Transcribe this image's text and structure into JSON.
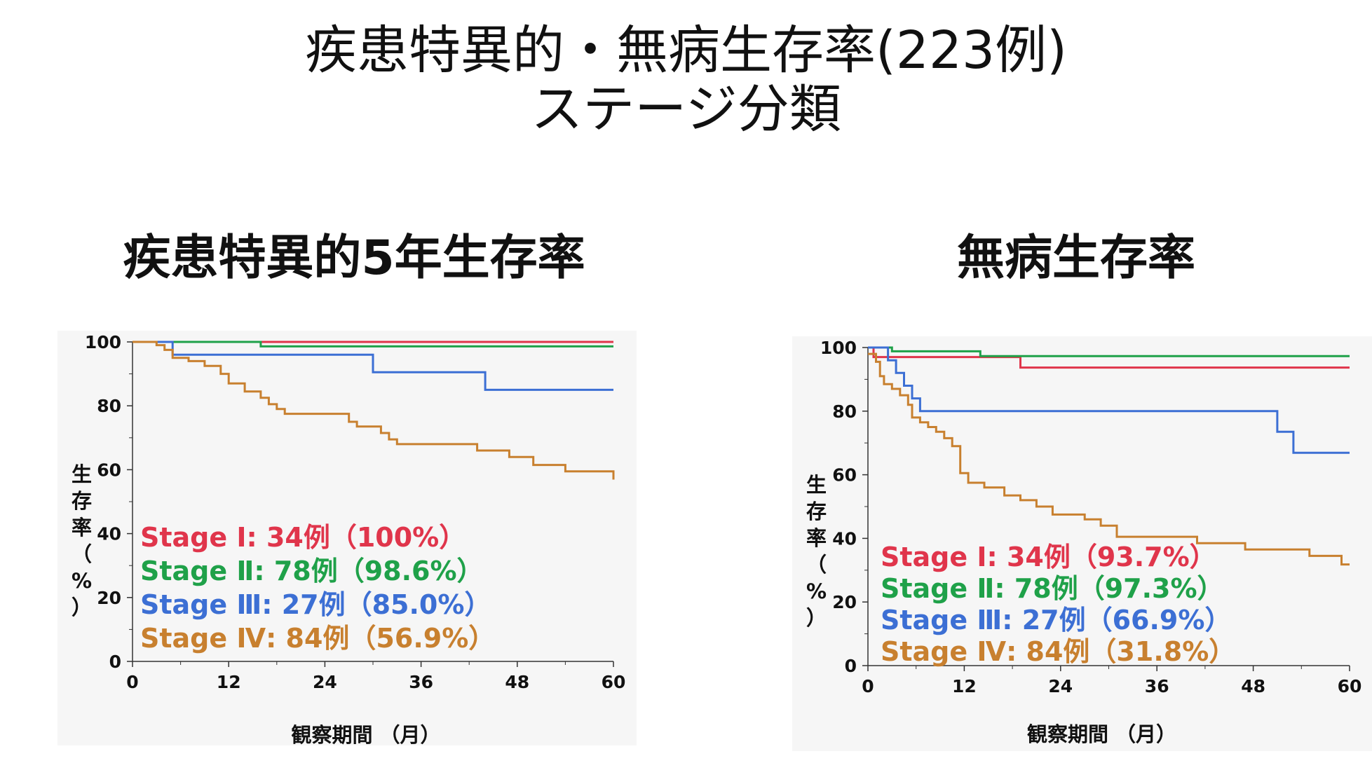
{
  "slide": {
    "title_line1": "疾患特異的・無病生存率(223例)",
    "title_line2": "ステージ分類"
  },
  "colors": {
    "stage1": "#e0354b",
    "stage2": "#1fa149",
    "stage3": "#3c6fd4",
    "stage4": "#c8802f"
  },
  "chart_data": [
    {
      "type": "line",
      "title": "疾患特異的5年生存率",
      "xlabel": "観察期間 （月）",
      "ylabel": "生存率（%）",
      "xlim": [
        0,
        60
      ],
      "ylim": [
        0,
        100
      ],
      "xticks": [
        "0",
        "12",
        "24",
        "36",
        "48",
        "60"
      ],
      "yticks": [
        "0",
        "20",
        "40",
        "60",
        "80",
        "100"
      ],
      "legend_position": "bottom-left",
      "series": [
        {
          "name": "Stage Ⅰ: 34例（100%）",
          "color_key": "stage1",
          "points": [
            [
              0,
              100
            ],
            [
              60,
              100
            ]
          ]
        },
        {
          "name": "Stage Ⅱ: 78例（98.6%）",
          "color_key": "stage2",
          "points": [
            [
              0,
              100
            ],
            [
              16,
              100
            ],
            [
              16,
              98.6
            ],
            [
              60,
              98.6
            ]
          ]
        },
        {
          "name": "Stage Ⅲ: 27例（85.0%）",
          "color_key": "stage3",
          "points": [
            [
              0,
              100
            ],
            [
              5,
              100
            ],
            [
              5,
              96
            ],
            [
              30,
              96
            ],
            [
              30,
              90.5
            ],
            [
              44,
              90.5
            ],
            [
              44,
              85
            ],
            [
              60,
              85
            ]
          ]
        },
        {
          "name": "Stage Ⅳ: 84例（56.9%）",
          "color_key": "stage4",
          "points": [
            [
              0,
              100
            ],
            [
              3,
              100
            ],
            [
              3,
              99
            ],
            [
              4,
              99
            ],
            [
              4,
              97.5
            ],
            [
              5,
              97.5
            ],
            [
              5,
              95
            ],
            [
              7,
              95
            ],
            [
              7,
              94
            ],
            [
              9,
              94
            ],
            [
              9,
              92.5
            ],
            [
              11,
              92.5
            ],
            [
              11,
              90
            ],
            [
              12,
              90
            ],
            [
              12,
              87
            ],
            [
              14,
              87
            ],
            [
              14,
              84.5
            ],
            [
              16,
              84.5
            ],
            [
              16,
              82.5
            ],
            [
              17,
              82.5
            ],
            [
              17,
              80.5
            ],
            [
              18,
              80.5
            ],
            [
              18,
              79
            ],
            [
              19,
              79
            ],
            [
              19,
              77.5
            ],
            [
              27,
              77.5
            ],
            [
              27,
              75
            ],
            [
              28,
              75
            ],
            [
              28,
              73.5
            ],
            [
              31,
              73.5
            ],
            [
              31,
              71.5
            ],
            [
              32,
              71.5
            ],
            [
              32,
              69.5
            ],
            [
              33,
              69.5
            ],
            [
              33,
              68
            ],
            [
              43,
              68
            ],
            [
              43,
              66
            ],
            [
              47,
              66
            ],
            [
              47,
              64
            ],
            [
              50,
              64
            ],
            [
              50,
              61.5
            ],
            [
              54,
              61.5
            ],
            [
              54,
              59.5
            ],
            [
              60,
              59.5
            ],
            [
              60,
              56.9
            ]
          ]
        }
      ]
    },
    {
      "type": "line",
      "title": "無病生存率",
      "xlabel": "観察期間 （月）",
      "ylabel": "生存率（%）",
      "xlim": [
        0,
        60
      ],
      "ylim": [
        0,
        100
      ],
      "xticks": [
        "0",
        "12",
        "24",
        "36",
        "48",
        "60"
      ],
      "yticks": [
        "0",
        "20",
        "40",
        "60",
        "80",
        "100"
      ],
      "legend_position": "bottom-left",
      "series": [
        {
          "name": "Stage Ⅰ: 34例（93.7%）",
          "color_key": "stage1",
          "points": [
            [
              0,
              100
            ],
            [
              0.7,
              100
            ],
            [
              0.7,
              97
            ],
            [
              19,
              97
            ],
            [
              19,
              93.7
            ],
            [
              60,
              93.7
            ]
          ]
        },
        {
          "name": "Stage Ⅱ: 78例（97.3%）",
          "color_key": "stage2",
          "points": [
            [
              0,
              100
            ],
            [
              3,
              100
            ],
            [
              3,
              98.8
            ],
            [
              14,
              98.8
            ],
            [
              14,
              97.3
            ],
            [
              60,
              97.3
            ]
          ]
        },
        {
          "name": "Stage Ⅲ: 27例（66.9%）",
          "color_key": "stage3",
          "points": [
            [
              0,
              100
            ],
            [
              2.5,
              100
            ],
            [
              2.5,
              96
            ],
            [
              3.5,
              96
            ],
            [
              3.5,
              92
            ],
            [
              4.5,
              92
            ],
            [
              4.5,
              88
            ],
            [
              5.5,
              88
            ],
            [
              5.5,
              84
            ],
            [
              6.5,
              84
            ],
            [
              6.5,
              80
            ],
            [
              51,
              80
            ],
            [
              51,
              73.5
            ],
            [
              53,
              73.5
            ],
            [
              53,
              66.9
            ],
            [
              60,
              66.9
            ]
          ]
        },
        {
          "name": "Stage Ⅳ: 84例（31.8%）",
          "color_key": "stage4",
          "points": [
            [
              0,
              98
            ],
            [
              1,
              98
            ],
            [
              1,
              95.5
            ],
            [
              1.5,
              95.5
            ],
            [
              1.5,
              91
            ],
            [
              2,
              91
            ],
            [
              2,
              88.5
            ],
            [
              3,
              88.5
            ],
            [
              3,
              87
            ],
            [
              4,
              87
            ],
            [
              4,
              85
            ],
            [
              5,
              85
            ],
            [
              5,
              82
            ],
            [
              5.5,
              82
            ],
            [
              5.5,
              78
            ],
            [
              6.5,
              78
            ],
            [
              6.5,
              76.5
            ],
            [
              7.5,
              76.5
            ],
            [
              7.5,
              75
            ],
            [
              8.5,
              75
            ],
            [
              8.5,
              73.5
            ],
            [
              9.5,
              73.5
            ],
            [
              9.5,
              71.5
            ],
            [
              10.5,
              71.5
            ],
            [
              10.5,
              69
            ],
            [
              11.5,
              69
            ],
            [
              11.5,
              60.5
            ],
            [
              12.5,
              60.5
            ],
            [
              12.5,
              57.5
            ],
            [
              14.5,
              57.5
            ],
            [
              14.5,
              56
            ],
            [
              17,
              56
            ],
            [
              17,
              53.5
            ],
            [
              19,
              53.5
            ],
            [
              19,
              52
            ],
            [
              21,
              52
            ],
            [
              21,
              50
            ],
            [
              23,
              50
            ],
            [
              23,
              47.5
            ],
            [
              27,
              47.5
            ],
            [
              27,
              46
            ],
            [
              29,
              46
            ],
            [
              29,
              44
            ],
            [
              31,
              44
            ],
            [
              31,
              40.5
            ],
            [
              41,
              40.5
            ],
            [
              41,
              38.5
            ],
            [
              47,
              38.5
            ],
            [
              47,
              36.5
            ],
            [
              55,
              36.5
            ],
            [
              55,
              34.5
            ],
            [
              59,
              34.5
            ],
            [
              59,
              31.8
            ],
            [
              60,
              31.8
            ]
          ]
        }
      ]
    }
  ]
}
